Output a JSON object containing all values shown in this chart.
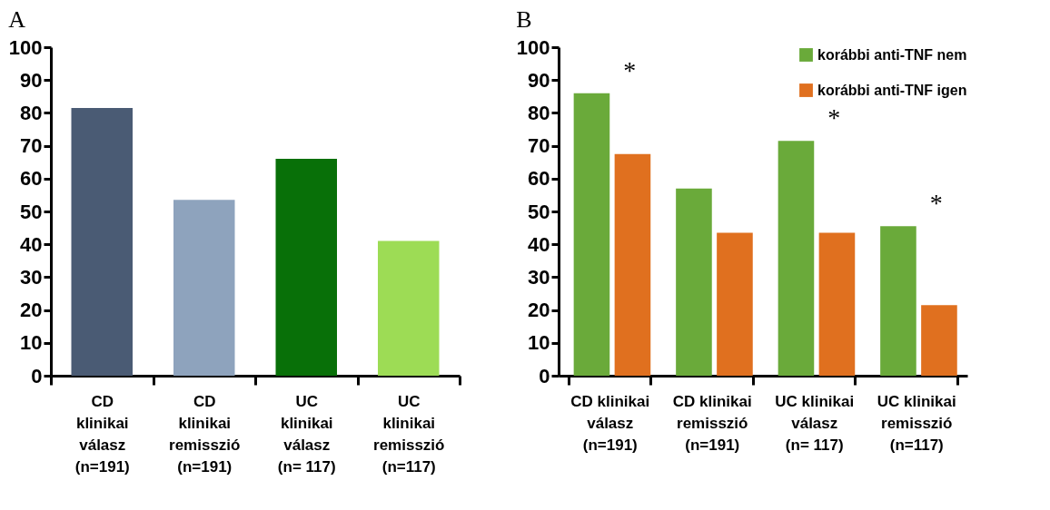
{
  "chart_data": [
    {
      "type": "bar",
      "title": "A",
      "categories": [
        "CD\nklinikai\nválasz\n(n=191)",
        "CD\nklinikai\nremisszió\n(n=191)",
        "UC\nklinikai\nválasz\n(n= 117)",
        "UC\nklinikai\nremisszió\n(n=117)"
      ],
      "values": [
        81.5,
        53.5,
        66,
        41
      ],
      "colors": [
        "#4a5b74",
        "#8ea3bd",
        "#087008",
        "#9ddc55"
      ],
      "ylim": [
        0,
        100
      ],
      "yticks": [
        0,
        10,
        20,
        30,
        40,
        50,
        60,
        70,
        80,
        90,
        100
      ],
      "grid": false
    },
    {
      "type": "bar",
      "title": "B",
      "categories": [
        "CD klinikai\nválasz\n(n=191)",
        "CD klinikai\nremisszió\n(n=191)",
        "UC klinikai\nválasz\n(n= 117)",
        "UC klinikai\nremisszió\n(n=117)"
      ],
      "series": [
        {
          "name": "korábbi anti-TNF nem",
          "color": "#6aaa3a",
          "values": [
            86,
            57,
            71.5,
            45.5
          ]
        },
        {
          "name": "korábbi anti-TNF igen",
          "color": "#e0701f",
          "values": [
            67.5,
            43.5,
            43.5,
            21.5
          ]
        }
      ],
      "annotations": [
        {
          "text": "*",
          "x": "CD klinikai\nválasz\n(n=191)",
          "y": 86
        },
        {
          "text": "*",
          "x": "UC klinikai\nválasz\n(n= 117)",
          "y": 71.5
        },
        {
          "text": "*",
          "x": "UC klinikai\nremisszió\n(n=117)",
          "y": 45.5
        }
      ],
      "ylim": [
        0,
        100
      ],
      "yticks": [
        0,
        10,
        20,
        30,
        40,
        50,
        60,
        70,
        80,
        90,
        100
      ],
      "grid": false,
      "legend": "top right"
    }
  ]
}
